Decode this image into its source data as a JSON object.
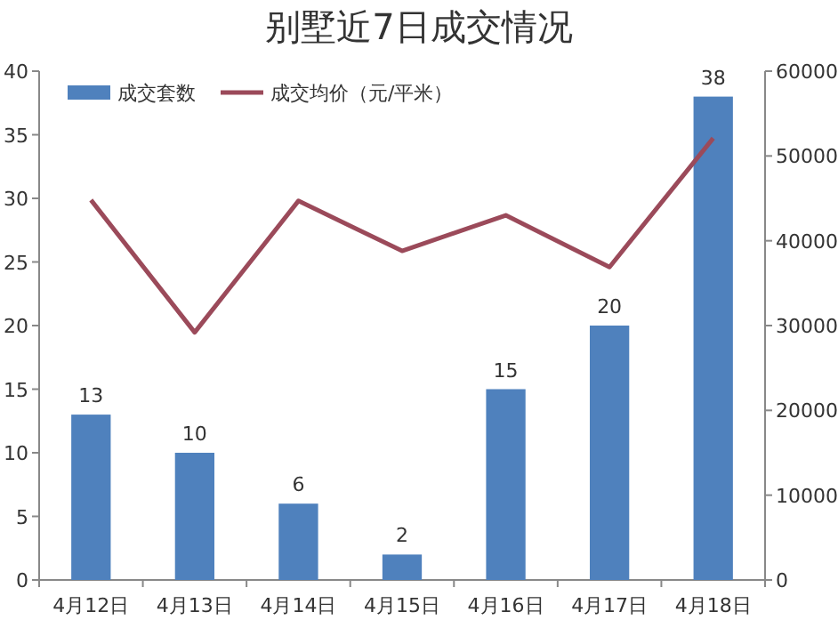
{
  "chart_data": {
    "type": "bar",
    "title": "别墅近7日成交情况",
    "categories": [
      "4月12日",
      "4月13日",
      "4月14日",
      "4月15日",
      "4月16日",
      "4月17日",
      "4月18日"
    ],
    "series": [
      {
        "name": "成交套数",
        "color": "#4f81bd",
        "values": [
          13,
          10,
          6,
          2,
          15,
          20,
          38
        ],
        "value_labels": [
          "13",
          "10",
          "6",
          "2",
          "15",
          "20",
          "38"
        ]
      },
      {
        "name": "成交均价（元/平米）",
        "type": "line",
        "axis": "y2",
        "color": "#9b4a5a",
        "values": [
          44800,
          29200,
          44700,
          38800,
          43000,
          36900,
          52100
        ]
      }
    ],
    "ylim": [
      0,
      40
    ],
    "yticks": [
      0,
      5,
      10,
      15,
      20,
      25,
      30,
      35,
      40
    ],
    "y2lim": [
      0,
      60000
    ],
    "y2ticks": [
      0,
      10000,
      20000,
      30000,
      40000,
      50000,
      60000
    ],
    "legend": "top left",
    "grid": false,
    "marker": "none",
    "line_style": "solid"
  }
}
